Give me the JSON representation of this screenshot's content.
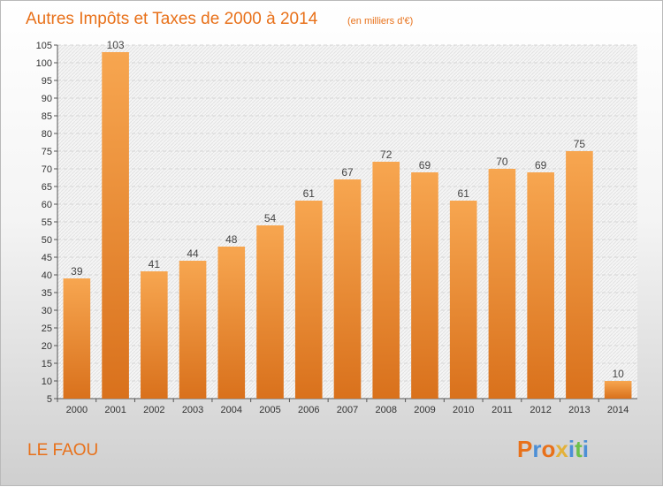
{
  "chart_data": {
    "type": "bar",
    "title": "Autres Impôts et Taxes de 2000 à 2014",
    "subtitle": "(en milliers d'€)",
    "categories": [
      "2000",
      "2001",
      "2002",
      "2003",
      "2004",
      "2005",
      "2006",
      "2007",
      "2008",
      "2009",
      "2010",
      "2011",
      "2012",
      "2013",
      "2014"
    ],
    "values": [
      39,
      103,
      41,
      44,
      48,
      54,
      61,
      67,
      72,
      69,
      61,
      70,
      69,
      75,
      10
    ],
    "ylim": [
      5,
      105
    ],
    "yticks": [
      5,
      10,
      15,
      20,
      25,
      30,
      35,
      40,
      45,
      50,
      55,
      60,
      65,
      70,
      75,
      80,
      85,
      90,
      95,
      100,
      105
    ],
    "grid": true,
    "bar_color": "#f08a2c"
  },
  "location": "LE FAOU",
  "brand": "Proxiti",
  "brand_colors": [
    "#e8711a",
    "#4c8fd6",
    "#e8711a",
    "#e3b13a",
    "#4c8fd6",
    "#6cc04a",
    "#4c8fd6"
  ]
}
